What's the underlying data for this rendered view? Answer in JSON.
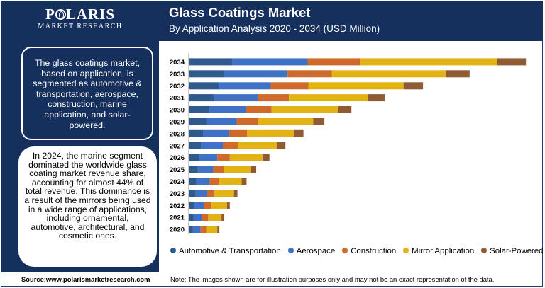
{
  "logo": {
    "name": "POLARIS",
    "tagline": "MARKET RESEARCH"
  },
  "header": {
    "title": "Glass Coatings Market",
    "subtitle": "By Application Analysis 2020 - 2034 (USD Million)"
  },
  "summary_text": "The glass coatings market, based on application, is segmented as automotive & transportation, aerospace, construction, marine application, and solar-powered.",
  "highlight_text": "In 2024, the marine segment dominated the worldwide glass coating market revenue share, accounting for almost 44% of total revenue. This dominance is a result of the mirrors being used in a wide range of applications, including ornamental, automotive, architectural, and cosmetic ones.",
  "footer": {
    "source": "Source:www.polarismarketresearch.com",
    "note": "Note: The images shown are for illustration purposes only and may not be an exact representation of the data."
  },
  "colors": {
    "Automotive & Transportation": "#2e5a8e",
    "Aerospace": "#3f72c6",
    "Construction": "#d06a2b",
    "Mirror Application": "#e3b316",
    "Solar-Powered": "#8e5b33"
  },
  "chart_data": {
    "type": "bar",
    "orientation": "horizontal",
    "stacked": true,
    "title": "Glass Coatings Market",
    "xlabel": "",
    "ylabel": "",
    "categories": [
      "2034",
      "2033",
      "2032",
      "2031",
      "2030",
      "2029",
      "2028",
      "2027",
      "2026",
      "2025",
      "2024",
      "2023",
      "2022",
      "2021",
      "2020"
    ],
    "series": [
      {
        "name": "Automotive & Transportation",
        "values": [
          62,
          50,
          42,
          35,
          29,
          24,
          20,
          17,
          14,
          12,
          10,
          9,
          7,
          6,
          5
        ]
      },
      {
        "name": "Aerospace",
        "values": [
          108,
          91,
          75,
          63,
          52,
          44,
          37,
          31,
          26,
          22,
          19,
          16,
          14,
          12,
          11
        ]
      },
      {
        "name": "Construction",
        "values": [
          76,
          64,
          54,
          45,
          37,
          31,
          26,
          22,
          18,
          15,
          13,
          11,
          10,
          9,
          8
        ]
      },
      {
        "name": "Mirror Application",
        "values": [
          197,
          164,
          137,
          114,
          96,
          79,
          67,
          56,
          47,
          39,
          33,
          28,
          23,
          19,
          16
        ]
      },
      {
        "name": "Solar-Powered",
        "values": [
          41,
          34,
          28,
          24,
          19,
          16,
          14,
          12,
          10,
          8,
          7,
          5,
          4,
          4,
          3
        ]
      }
    ],
    "xlim": [
      0,
      490
    ],
    "grid": false,
    "legend": "bottom"
  }
}
